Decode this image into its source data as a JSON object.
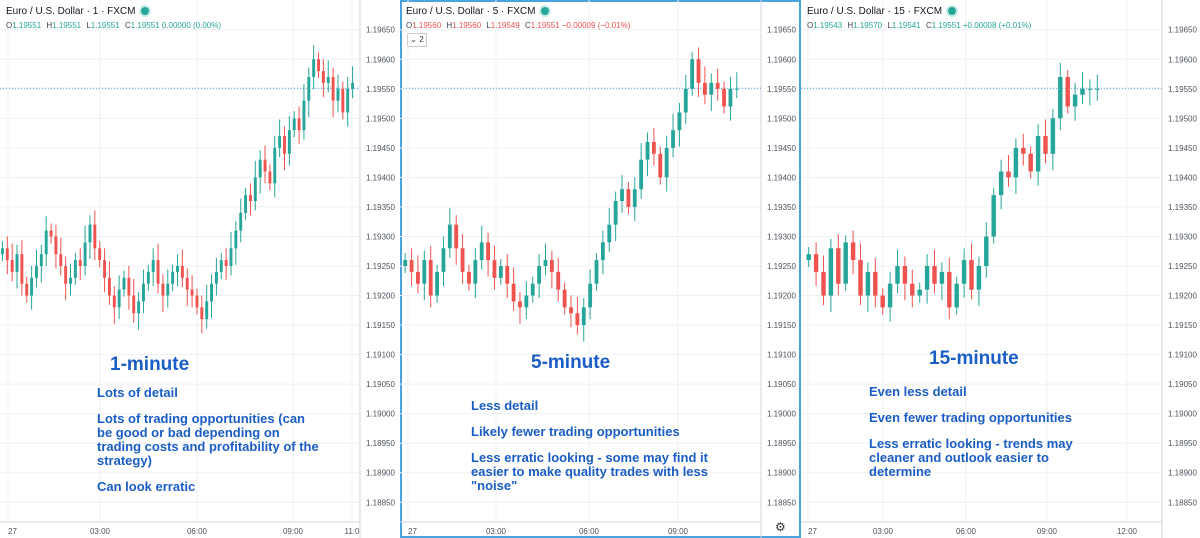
{
  "panels": [
    {
      "legend": "Euro / U.S. Dollar · 1 · FXCM",
      "ohlc": [
        {
          "label": "O",
          "value": "1.19551"
        },
        {
          "label": "H",
          "value": "1.19551"
        },
        {
          "label": "L",
          "value": "1.19551"
        },
        {
          "label": "C",
          "value": "1.19551 0.00000 (0.00%)"
        }
      ],
      "ohlc_color": "#26a69a",
      "interval_badge": "",
      "title": "1-minute",
      "bullets": [
        "Lots of detail",
        "Lots of trading opportunities (can be good or bad depending on trading costs and profitability of the strategy)",
        "Can look erratic"
      ],
      "x_ticks": [
        "27",
        "03:00",
        "06:00",
        "09:00",
        "11:0"
      ]
    },
    {
      "legend": "Euro / U.S. Dollar · 5 · FXCM",
      "ohlc": [
        {
          "label": "O",
          "value": "1.19560"
        },
        {
          "label": "H",
          "value": "1.19560"
        },
        {
          "label": "L",
          "value": "1.19549"
        },
        {
          "label": "C",
          "value": "1.19551 −0.00009 (−0.01%)"
        }
      ],
      "ohlc_color": "#ef5350",
      "interval_badge": "2",
      "title": "5-minute",
      "bullets": [
        "Less detail",
        "Likely fewer trading opportunities",
        "Less erratic looking - some may find it easier to make quality trades with less \"noise\""
      ],
      "x_ticks": [
        "27",
        "03:00",
        "06:00",
        "09:00"
      ]
    },
    {
      "legend": "Euro / U.S. Dollar · 15 · FXCM",
      "ohlc": [
        {
          "label": "O",
          "value": "1.19543"
        },
        {
          "label": "H",
          "value": "1.19570"
        },
        {
          "label": "L",
          "value": "1.19541"
        },
        {
          "label": "C",
          "value": "1.19551 +0.00008 (+0.01%)"
        }
      ],
      "ohlc_color": "#26a69a",
      "interval_badge": "",
      "title": "15-minute",
      "bullets": [
        "Even less detail",
        "Even fewer trading opportunities",
        "Less erratic looking - trends may cleaner and outlook easier to determine"
      ],
      "x_ticks": [
        "27",
        "03:00",
        "06:00",
        "09:00",
        "12:00"
      ]
    }
  ],
  "gear_icon": "settings-gear",
  "colors": {
    "up": "#26a69a",
    "down": "#ef5350",
    "accent": "#1a5dc4",
    "grid": "#eef0f3",
    "last_price_line": "#4aa3df"
  },
  "chart_data": [
    {
      "type": "candlestick",
      "series_name": "EUR/USD 1-minute",
      "ylim": [
        1.1882,
        1.1968
      ],
      "y_ticks": [
        "1.19650",
        "1.19600",
        "1.19550",
        "1.19500",
        "1.19450",
        "1.19400",
        "1.19350",
        "1.19300",
        "1.19250",
        "1.19200",
        "1.19150",
        "1.19100",
        "1.19050",
        "1.19000",
        "1.18950",
        "1.18900",
        "1.18850"
      ],
      "last_price": 1.19551,
      "closes": [
        1.1928,
        1.1926,
        1.1924,
        1.1927,
        1.1922,
        1.192,
        1.1923,
        1.1925,
        1.1927,
        1.1931,
        1.193,
        1.1927,
        1.1925,
        1.1922,
        1.1923,
        1.1926,
        1.1925,
        1.1929,
        1.1932,
        1.1928,
        1.1926,
        1.1923,
        1.192,
        1.1918,
        1.1921,
        1.1923,
        1.192,
        1.1917,
        1.1919,
        1.1922,
        1.1924,
        1.1926,
        1.1922,
        1.192,
        1.1922,
        1.1924,
        1.1925,
        1.1923,
        1.1921,
        1.192,
        1.1918,
        1.1916,
        1.1919,
        1.1922,
        1.1924,
        1.1926,
        1.1925,
        1.1928,
        1.1931,
        1.1934,
        1.1937,
        1.1936,
        1.194,
        1.1943,
        1.1941,
        1.1939,
        1.1945,
        1.1947,
        1.1944,
        1.1948,
        1.195,
        1.1948,
        1.1953,
        1.1957,
        1.196,
        1.1958,
        1.1956,
        1.1957,
        1.1953,
        1.1955,
        1.1951,
        1.1955,
        1.1956
      ]
    },
    {
      "type": "candlestick",
      "series_name": "EUR/USD 5-minute",
      "ylim": [
        1.1882,
        1.1968
      ],
      "y_ticks": [
        "1.19650",
        "1.19600",
        "1.19550",
        "1.19500",
        "1.19450",
        "1.19400",
        "1.19350",
        "1.19300",
        "1.19250",
        "1.19200",
        "1.19150",
        "1.19100",
        "1.19050",
        "1.19000",
        "1.18950",
        "1.18900",
        "1.18850"
      ],
      "last_price": 1.19551,
      "closes": [
        1.1926,
        1.1924,
        1.1922,
        1.1926,
        1.192,
        1.1924,
        1.1928,
        1.1932,
        1.1928,
        1.1924,
        1.1922,
        1.1926,
        1.1929,
        1.1926,
        1.1923,
        1.1925,
        1.1922,
        1.1919,
        1.1918,
        1.192,
        1.1922,
        1.1925,
        1.1926,
        1.1924,
        1.1921,
        1.1918,
        1.1917,
        1.1915,
        1.1918,
        1.1922,
        1.1926,
        1.1929,
        1.1932,
        1.1936,
        1.1938,
        1.1935,
        1.1938,
        1.1943,
        1.1946,
        1.1944,
        1.194,
        1.1945,
        1.1948,
        1.1951,
        1.1955,
        1.196,
        1.1956,
        1.1954,
        1.1956,
        1.1955,
        1.1952,
        1.1955,
        1.1955
      ]
    },
    {
      "type": "candlestick",
      "series_name": "EUR/USD 15-minute",
      "ylim": [
        1.1882,
        1.1968
      ],
      "y_ticks": [
        "1.19650",
        "1.19600",
        "1.19550",
        "1.19500",
        "1.19450",
        "1.19400",
        "1.19350",
        "1.19300",
        "1.19250",
        "1.19200",
        "1.19150",
        "1.19100",
        "1.19050",
        "1.19000",
        "1.18950",
        "1.18900",
        "1.18850"
      ],
      "last_price": 1.19551,
      "closes": [
        1.1927,
        1.1924,
        1.192,
        1.1928,
        1.1922,
        1.1929,
        1.1926,
        1.192,
        1.1924,
        1.192,
        1.1918,
        1.1922,
        1.1925,
        1.1922,
        1.192,
        1.1921,
        1.1925,
        1.1922,
        1.1924,
        1.1918,
        1.1922,
        1.1926,
        1.1921,
        1.1925,
        1.193,
        1.1937,
        1.1941,
        1.194,
        1.1945,
        1.1944,
        1.1941,
        1.1947,
        1.1944,
        1.195,
        1.1957,
        1.1952,
        1.1954,
        1.1955,
        1.1955,
        1.1955
      ]
    }
  ]
}
